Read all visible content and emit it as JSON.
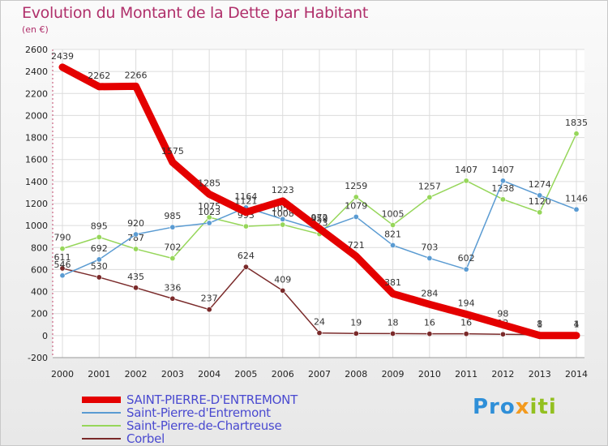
{
  "header": {
    "title": "Evolution du Montant de la Dette par Habitant",
    "subtitle": "(en €)"
  },
  "logo": {
    "part1": "Pro",
    "part2": "x",
    "part3": "iti"
  },
  "chart_data": {
    "type": "line",
    "title": "Evolution du Montant de la Dette par Habitant",
    "subtitle": "(en €)",
    "xlabel": "",
    "ylabel": "",
    "ylim": [
      -200,
      2600
    ],
    "yticks": [
      -200,
      0,
      200,
      400,
      600,
      800,
      1000,
      1200,
      1400,
      1600,
      1800,
      2000,
      2200,
      2400,
      2600
    ],
    "grid": true,
    "legend_position": "bottom-left",
    "x": [
      "2000",
      "2001",
      "2002",
      "2003",
      "2004",
      "2005",
      "2006",
      "2007",
      "2008",
      "2009",
      "2010",
      "2011",
      "2012",
      "2013",
      "2014"
    ],
    "series": [
      {
        "name": "Corbel",
        "color": "#7a2a2a",
        "values": [
          611,
          530,
          435,
          336,
          237,
          624,
          409,
          24,
          19,
          18,
          16,
          16,
          12,
          8,
          4
        ],
        "labels": [
          "611",
          "530",
          "435",
          "336",
          "237",
          "624",
          "409",
          "24",
          "19",
          "18",
          "16",
          "16",
          "12",
          "8",
          "4"
        ]
      },
      {
        "name": "Saint-Pierre-de-Chartreuse",
        "color": "#96d65a",
        "values": [
          790,
          895,
          787,
          702,
          1075,
          993,
          1008,
          923,
          1259,
          1005,
          1257,
          1407,
          1238,
          1120,
          1835
        ],
        "labels": [
          "790",
          "895",
          "787",
          "702",
          "1075",
          "993",
          "1008",
          "923",
          "1259",
          "1005",
          "1257",
          "1407",
          "1238",
          "1120",
          "1835"
        ]
      },
      {
        "name": "Saint-Pierre-d'Entremont",
        "color": "#5a9bd2",
        "values": [
          546,
          692,
          920,
          985,
          1023,
          1164,
          1058,
          959,
          1079,
          821,
          703,
          602,
          1407,
          1274,
          1146
        ],
        "labels": [
          "546",
          "692",
          "920",
          "985",
          "1023",
          "1164",
          "1058",
          "959",
          "1079",
          "821",
          "703",
          "602",
          "1407",
          "1274",
          "1146"
        ]
      },
      {
        "name": "SAINT-PIERRE-D'ENTREMONT",
        "color": "#e40000",
        "values": [
          2439,
          2262,
          2266,
          1575,
          1285,
          1121,
          1223,
          972,
          721,
          381,
          284,
          194,
          98,
          1,
          1
        ],
        "labels": [
          "2439",
          "2262",
          "2266",
          "1575",
          "1285",
          "1121",
          "1223",
          "972",
          "721",
          "381",
          "284",
          "194",
          "98",
          "1",
          "1"
        ]
      }
    ],
    "legend": [
      {
        "name": "SAINT-PIERRE-D'ENTREMONT",
        "color": "#e40000",
        "thick": true
      },
      {
        "name": "Saint-Pierre-d'Entremont",
        "color": "#5a9bd2",
        "thick": false
      },
      {
        "name": "Saint-Pierre-de-Chartreuse",
        "color": "#96d65a",
        "thick": false
      },
      {
        "name": "Corbel",
        "color": "#7a2a2a",
        "thick": false
      }
    ]
  }
}
